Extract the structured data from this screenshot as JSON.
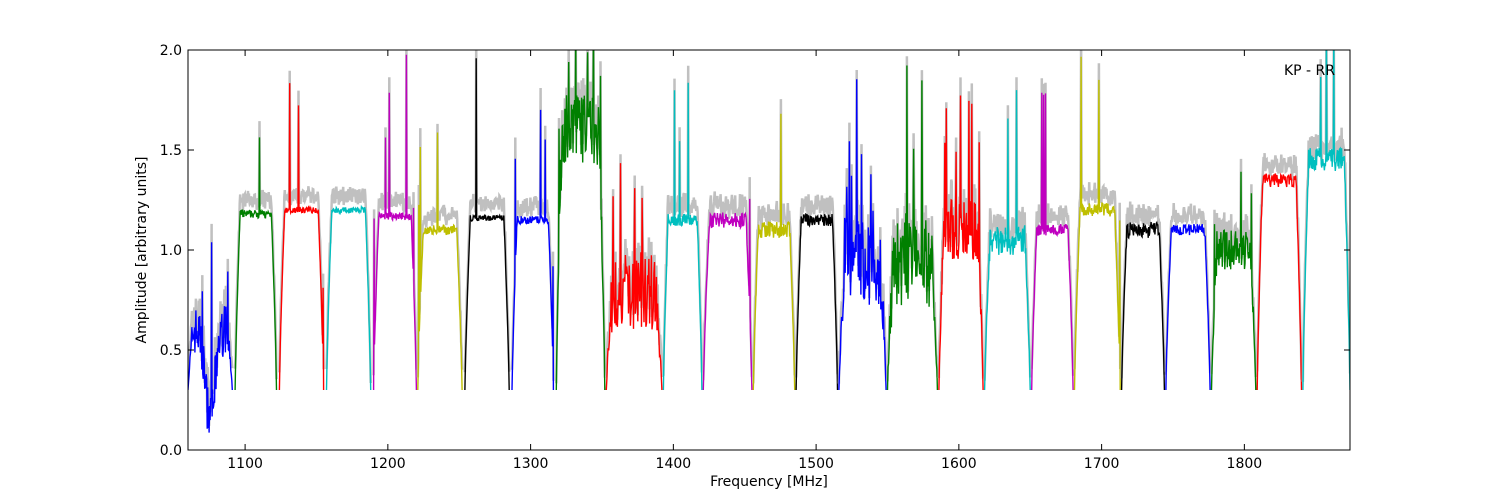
{
  "chart_data": {
    "type": "line",
    "title": "",
    "annotation": "KP - RR",
    "xlabel": "Frequency [MHz]",
    "ylabel": "Amplitude [arbitrary units]",
    "xlim": [
      1060,
      1874
    ],
    "ylim": [
      0.0,
      2.0
    ],
    "xticks": [
      1100,
      1200,
      1300,
      1400,
      1500,
      1600,
      1700,
      1800
    ],
    "yticks": [
      0.0,
      0.5,
      1.0,
      1.5,
      2.0
    ],
    "xtick_labels": [
      "1100",
      "1200",
      "1300",
      "1400",
      "1500",
      "1600",
      "1700",
      "1800"
    ],
    "ytick_labels": [
      "0.0",
      "0.5",
      "1.0",
      "1.5",
      "2.0"
    ],
    "grid": false,
    "band_colors": [
      "#0000ff",
      "#008000",
      "#ff0000",
      "#00bfbf",
      "#bf00bf",
      "#bfbf00",
      "#000000"
    ],
    "background_series_color": "#c0c0c0",
    "bands": [
      {
        "start": 1060,
        "end": 1091,
        "level": 0.6,
        "noise": 0.25,
        "dip": 0.15
      },
      {
        "start": 1093,
        "end": 1122,
        "level": 1.18,
        "noise": 0.04
      },
      {
        "start": 1124,
        "end": 1155,
        "level": 1.2,
        "noise": 0.03
      },
      {
        "start": 1157,
        "end": 1188,
        "level": 1.2,
        "noise": 0.03
      },
      {
        "start": 1190,
        "end": 1220,
        "level": 1.17,
        "noise": 0.04
      },
      {
        "start": 1221,
        "end": 1252,
        "level": 1.1,
        "noise": 0.05
      },
      {
        "start": 1254,
        "end": 1285,
        "level": 1.16,
        "noise": 0.03
      },
      {
        "start": 1287,
        "end": 1316,
        "level": 1.15,
        "noise": 0.04
      },
      {
        "start": 1318,
        "end": 1352,
        "level": 1.6,
        "noise": 0.35
      },
      {
        "start": 1353,
        "end": 1392,
        "level": 0.8,
        "noise": 0.4
      },
      {
        "start": 1393,
        "end": 1420,
        "level": 1.15,
        "noise": 0.06
      },
      {
        "start": 1421,
        "end": 1455,
        "level": 1.15,
        "noise": 0.08
      },
      {
        "start": 1456,
        "end": 1485,
        "level": 1.1,
        "noise": 0.08
      },
      {
        "start": 1486,
        "end": 1515,
        "level": 1.15,
        "noise": 0.06
      },
      {
        "start": 1516,
        "end": 1549,
        "level": 0.95,
        "noise": 0.45
      },
      {
        "start": 1550,
        "end": 1585,
        "level": 0.95,
        "noise": 0.5
      },
      {
        "start": 1586,
        "end": 1617,
        "level": 1.1,
        "noise": 0.3
      },
      {
        "start": 1618,
        "end": 1650,
        "level": 1.05,
        "noise": 0.15
      },
      {
        "start": 1651,
        "end": 1680,
        "level": 1.1,
        "noise": 0.06
      },
      {
        "start": 1681,
        "end": 1713,
        "level": 1.2,
        "noise": 0.07
      },
      {
        "start": 1714,
        "end": 1744,
        "level": 1.1,
        "noise": 0.08
      },
      {
        "start": 1745,
        "end": 1776,
        "level": 1.1,
        "noise": 0.06
      },
      {
        "start": 1777,
        "end": 1808,
        "level": 1.0,
        "noise": 0.2
      },
      {
        "start": 1809,
        "end": 1840,
        "level": 1.35,
        "noise": 0.07
      },
      {
        "start": 1841,
        "end": 1874,
        "level": 1.45,
        "noise": 0.12
      }
    ]
  }
}
